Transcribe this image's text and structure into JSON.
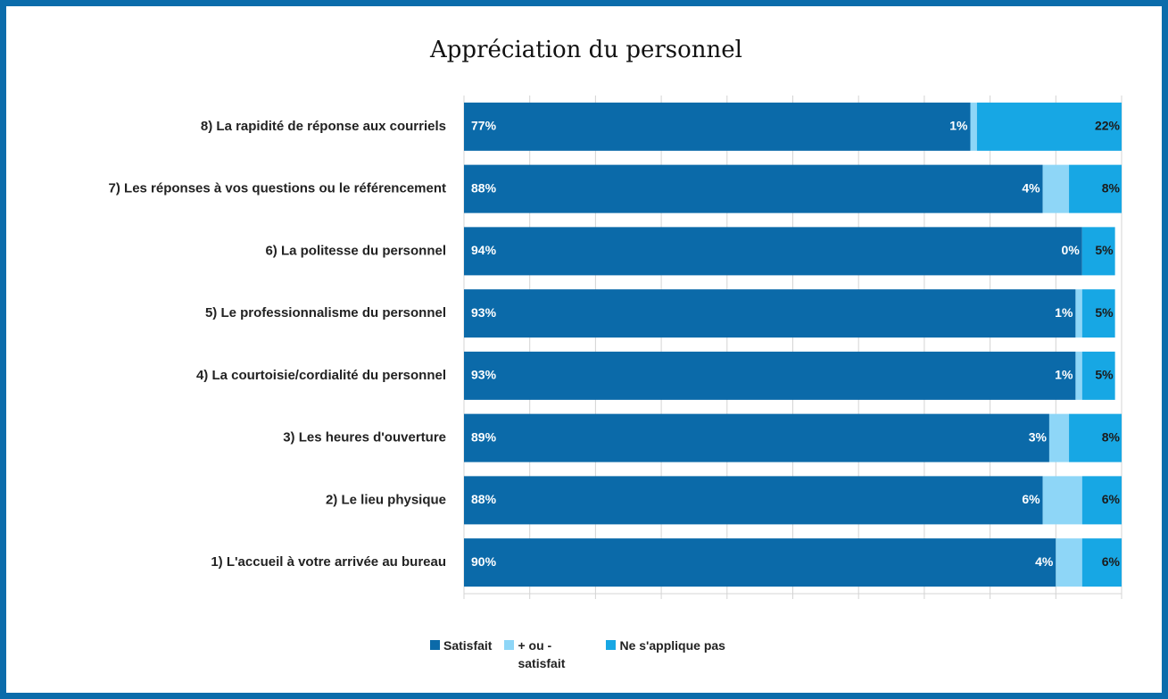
{
  "chart_data": {
    "type": "stacked_barh",
    "title": "Appréciation du personnel",
    "categories": [
      "8) La rapidité de réponse aux courriels",
      "7) Les réponses à vos questions ou le référencement",
      "6) La politesse du personnel",
      "5) Le professionnalisme du personnel",
      "4) La courtoisie/cordialité du personnel",
      "3) Les heures d'ouverture",
      "2) Le lieu physique",
      "1)  L'accueil à votre arrivée au bureau"
    ],
    "series": [
      {
        "name": "Satisfait",
        "color": "#0b6aa9",
        "values": [
          77,
          88,
          94,
          93,
          93,
          89,
          88,
          90
        ],
        "value_labels": [
          "77%",
          "88%",
          "94%",
          "93%",
          "93%",
          "89%",
          "88%",
          "90%"
        ]
      },
      {
        "name": "+ ou - satisfait",
        "color": "#8ed6f7",
        "values": [
          1,
          4,
          0,
          1,
          1,
          3,
          6,
          4
        ],
        "value_labels": [
          "1%",
          "4%",
          "0%",
          "1%",
          "1%",
          "3%",
          "6%",
          "4%"
        ]
      },
      {
        "name": "Ne s'applique pas",
        "color": "#17a7e4",
        "values": [
          22,
          8,
          5,
          5,
          5,
          8,
          6,
          6
        ],
        "value_labels": [
          "22%",
          "8%",
          "5%",
          "5%",
          "5%",
          "8%",
          "6%",
          "6%"
        ]
      }
    ],
    "xlim": [
      0,
      100
    ],
    "xticks": [
      0,
      10,
      20,
      30,
      40,
      50,
      60,
      70,
      80,
      90,
      100
    ],
    "grid": true,
    "legend": "bottom"
  }
}
